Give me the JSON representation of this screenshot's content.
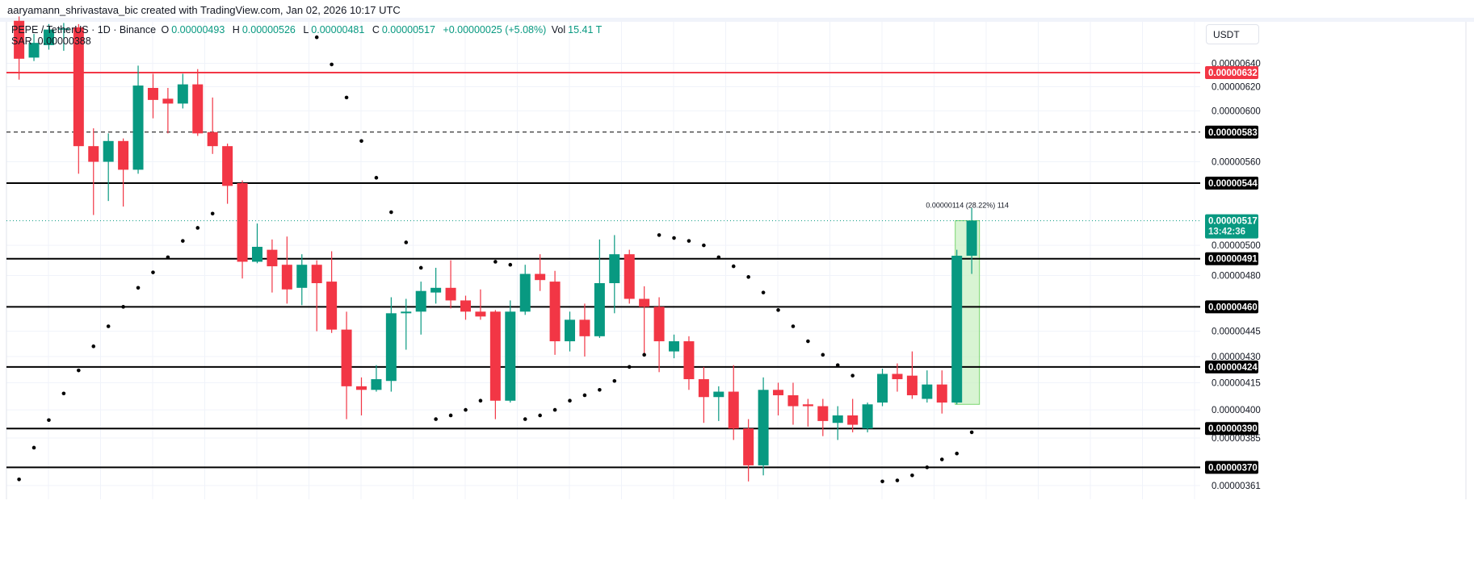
{
  "credit": "aaryamann_shrivastava_bic created with TradingView.com, Jan 02, 2026 10:17 UTC",
  "legend": {
    "symbol": "PEPE / TetherUS · 1D · Binance",
    "o_label": "O",
    "o": "0.00000493",
    "h_label": "H",
    "h": "0.00000526",
    "l_label": "L",
    "l": "0.00000481",
    "c_label": "C",
    "c": "0.00000517",
    "change": "+0.00000025 (+5.08%)",
    "vol_label": "Vol",
    "vol": "15.41 T",
    "sar_label": "SAR",
    "sar": "0.00000388"
  },
  "currency_button": "USDT",
  "colors": {
    "up": "#089981",
    "down": "#f23645",
    "level": "#000000",
    "resistance": "#f23645",
    "grid": "#f0f3fa",
    "measure_fill": "#c8f0c0"
  },
  "chart_data": {
    "type": "candlestick",
    "scale": "log",
    "interval": "1D",
    "grid": true,
    "ohlc_order": [
      "open",
      "high",
      "low",
      "close"
    ],
    "candles": [
      [
        6.78e-06,
        6.82e-06,
        6.26e-06,
        6.44e-06
      ],
      [
        6.45e-06,
        6.66e-06,
        6.42e-06,
        6.58e-06
      ],
      [
        6.56e-06,
        6.75e-06,
        6.52e-06,
        6.7e-06
      ],
      [
        6.7e-06,
        6.76e-06,
        6.51e-06,
        6.71e-06
      ],
      [
        6.72e-06,
        6.75e-06,
        5.51e-06,
        5.72e-06
      ],
      [
        5.72e-06,
        5.86e-06,
        5.21e-06,
        5.6e-06
      ],
      [
        5.6e-06,
        5.82e-06,
        5.31e-06,
        5.76e-06
      ],
      [
        5.76e-06,
        5.78e-06,
        5.27e-06,
        5.54e-06
      ],
      [
        5.54e-06,
        6.38e-06,
        5.51e-06,
        6.21e-06
      ],
      [
        6.19e-06,
        6.31e-06,
        5.94e-06,
        6.09e-06
      ],
      [
        6.1e-06,
        6.19e-06,
        5.82e-06,
        6.06e-06
      ],
      [
        6.06e-06,
        6.31e-06,
        6.02e-06,
        6.22e-06
      ],
      [
        6.22e-06,
        6.35e-06,
        5.8e-06,
        5.82e-06
      ],
      [
        5.83e-06,
        6.11e-06,
        5.66e-06,
        5.72e-06
      ],
      [
        5.72e-06,
        5.74e-06,
        5.29e-06,
        5.42e-06
      ],
      [
        5.44e-06,
        5.46e-06,
        4.78e-06,
        4.89e-06
      ],
      [
        4.89e-06,
        5.15e-06,
        4.88e-06,
        4.99e-06
      ],
      [
        4.97e-06,
        5.04e-06,
        4.69e-06,
        4.86e-06
      ],
      [
        4.87e-06,
        5.06e-06,
        4.62e-06,
        4.71e-06
      ],
      [
        4.72e-06,
        4.94e-06,
        4.61e-06,
        4.87e-06
      ],
      [
        4.87e-06,
        4.9e-06,
        4.45e-06,
        4.75e-06
      ],
      [
        4.76e-06,
        4.96e-06,
        4.44e-06,
        4.46e-06
      ],
      [
        4.46e-06,
        4.57e-06,
        3.95e-06,
        4.13e-06
      ],
      [
        4.13e-06,
        4.18e-06,
        3.97e-06,
        4.11e-06
      ],
      [
        4.11e-06,
        4.25e-06,
        4.1e-06,
        4.17e-06
      ],
      [
        4.16e-06,
        4.66e-06,
        4.1e-06,
        4.56e-06
      ],
      [
        4.56e-06,
        4.65e-06,
        4.34e-06,
        4.57e-06
      ],
      [
        4.57e-06,
        4.76e-06,
        4.43e-06,
        4.7e-06
      ],
      [
        4.69e-06,
        4.85e-06,
        4.62e-06,
        4.72e-06
      ],
      [
        4.72e-06,
        4.9e-06,
        4.59e-06,
        4.64e-06
      ],
      [
        4.64e-06,
        4.67e-06,
        4.52e-06,
        4.57e-06
      ],
      [
        4.57e-06,
        4.71e-06,
        4.52e-06,
        4.54e-06
      ],
      [
        4.57e-06,
        4.58e-06,
        3.95e-06,
        4.05e-06
      ],
      [
        4.05e-06,
        4.64e-06,
        4.04e-06,
        4.57e-06
      ],
      [
        4.57e-06,
        4.87e-06,
        4.55e-06,
        4.81e-06
      ],
      [
        4.81e-06,
        4.94e-06,
        4.7e-06,
        4.77e-06
      ],
      [
        4.76e-06,
        4.83e-06,
        4.31e-06,
        4.39e-06
      ],
      [
        4.39e-06,
        4.57e-06,
        4.33e-06,
        4.52e-06
      ],
      [
        4.52e-06,
        4.62e-06,
        4.3e-06,
        4.42e-06
      ],
      [
        4.42e-06,
        5.04e-06,
        4.41e-06,
        4.75e-06
      ],
      [
        4.75e-06,
        5.07e-06,
        4.56e-06,
        4.94e-06
      ],
      [
        4.94e-06,
        4.97e-06,
        4.62e-06,
        4.65e-06
      ],
      [
        4.65e-06,
        4.73e-06,
        4.31e-06,
        4.6e-06
      ],
      [
        4.6e-06,
        4.66e-06,
        4.21e-06,
        4.39e-06
      ],
      [
        4.33e-06,
        4.43e-06,
        4.29e-06,
        4.39e-06
      ],
      [
        4.39e-06,
        4.42e-06,
        4.11e-06,
        4.17e-06
      ],
      [
        4.17e-06,
        4.24e-06,
        3.93e-06,
        4.07e-06
      ],
      [
        4.07e-06,
        4.13e-06,
        3.94e-06,
        4.1e-06
      ],
      [
        4.1e-06,
        4.25e-06,
        3.84e-06,
        3.9e-06
      ],
      [
        3.9e-06,
        3.95e-06,
        3.63e-06,
        3.71e-06
      ],
      [
        3.71e-06,
        4.18e-06,
        3.66e-06,
        4.11e-06
      ],
      [
        4.11e-06,
        4.15e-06,
        3.97e-06,
        4.08e-06
      ],
      [
        4.08e-06,
        4.15e-06,
        3.92e-06,
        4.02e-06
      ],
      [
        4.03e-06,
        4.06e-06,
        3.91e-06,
        4.02e-06
      ],
      [
        4.02e-06,
        4.06e-06,
        3.86e-06,
        3.94e-06
      ],
      [
        3.93e-06,
        4.02e-06,
        3.84e-06,
        3.97e-06
      ],
      [
        3.97e-06,
        4.06e-06,
        3.88e-06,
        3.92e-06
      ],
      [
        3.9e-06,
        4.04e-06,
        3.88e-06,
        4.03e-06
      ],
      [
        4.04e-06,
        4.23e-06,
        4.02e-06,
        4.2e-06
      ],
      [
        4.2e-06,
        4.26e-06,
        4.1e-06,
        4.17e-06
      ],
      [
        4.19e-06,
        4.33e-06,
        4.06e-06,
        4.08e-06
      ],
      [
        4.06e-06,
        4.22e-06,
        4.04e-06,
        4.14e-06
      ],
      [
        4.14e-06,
        4.22e-06,
        3.98e-06,
        4.04e-06
      ],
      [
        4.04e-06,
        4.97e-06,
        4.03e-06,
        4.93e-06
      ],
      [
        4.93e-06,
        5.26e-06,
        4.81e-06,
        5.17e-06
      ]
    ],
    "sar": [
      3.64e-06,
      3.8e-06,
      3.945e-06,
      4.09e-06,
      4.22e-06,
      4.36e-06,
      4.48e-06,
      4.6e-06,
      4.72e-06,
      4.82e-06,
      4.92e-06,
      5.03e-06,
      5.12e-06,
      5.22e-06,
      null,
      null,
      null,
      null,
      null,
      null,
      6.63e-06,
      6.39e-06,
      6.11e-06,
      5.76e-06,
      5.48e-06,
      5.23e-06,
      5.02e-06,
      4.85e-06,
      3.95e-06,
      3.97e-06,
      4e-06,
      4.05e-06,
      4.89e-06,
      4.87e-06,
      3.95e-06,
      3.97e-06,
      4e-06,
      4.05e-06,
      4.08e-06,
      4.11e-06,
      4.16e-06,
      4.24e-06,
      4.31e-06,
      5.07e-06,
      5.05e-06,
      5.03e-06,
      5e-06,
      4.92e-06,
      4.86e-06,
      4.79e-06,
      4.69e-06,
      4.58e-06,
      4.48e-06,
      4.39e-06,
      4.31e-06,
      4.25e-06,
      4.19e-06,
      null,
      3.63e-06,
      3.635e-06,
      3.66e-06,
      3.7e-06,
      3.74e-06,
      3.77e-06,
      3.88e-06
    ],
    "y_ticks": [
      {
        "value": 6.4e-06,
        "label": "0.00000640"
      },
      {
        "value": 6.2e-06,
        "label": "0.00000620"
      },
      {
        "value": 6e-06,
        "label": "0.00000600"
      },
      {
        "value": 5.6e-06,
        "label": "0.00000560"
      },
      {
        "value": 5e-06,
        "label": "0.00000500"
      },
      {
        "value": 4.8e-06,
        "label": "0.00000480"
      },
      {
        "value": 4.45e-06,
        "label": "0.00000445"
      },
      {
        "value": 4.3e-06,
        "label": "0.00000430"
      },
      {
        "value": 4.15e-06,
        "label": "0.00000415"
      },
      {
        "value": 4e-06,
        "label": "0.00000400"
      },
      {
        "value": 3.85e-06,
        "label": "0.00000385"
      },
      {
        "value": 3.61e-06,
        "label": "0.00000361"
      }
    ],
    "horizontal_levels": [
      {
        "value": 6.32e-06,
        "label": "0.00000632",
        "color": "#f23645",
        "style": "solid"
      },
      {
        "value": 5.83e-06,
        "label": "0.00000583",
        "color": "#000000",
        "style": "dashed"
      },
      {
        "value": 5.44e-06,
        "label": "0.00000544",
        "color": "#000000",
        "style": "solid"
      },
      {
        "value": 4.91e-06,
        "label": "0.00000491",
        "color": "#000000",
        "style": "solid"
      },
      {
        "value": 4.6e-06,
        "label": "0.00000460",
        "color": "#000000",
        "style": "solid"
      },
      {
        "value": 4.24e-06,
        "label": "0.00000424",
        "color": "#000000",
        "style": "solid"
      },
      {
        "value": 3.9e-06,
        "label": "0.00000390",
        "color": "#000000",
        "style": "solid"
      },
      {
        "value": 3.7e-06,
        "label": "0.00000370",
        "color": "#000000",
        "style": "solid"
      }
    ],
    "current_price": {
      "value": 5.17e-06,
      "label": "0.00000517",
      "countdown": "13:42:36",
      "color": "#089981"
    },
    "measure": {
      "from": 4.03e-06,
      "to": 5.17e-06,
      "label": "0.00000114 (28.22%) 114"
    }
  }
}
